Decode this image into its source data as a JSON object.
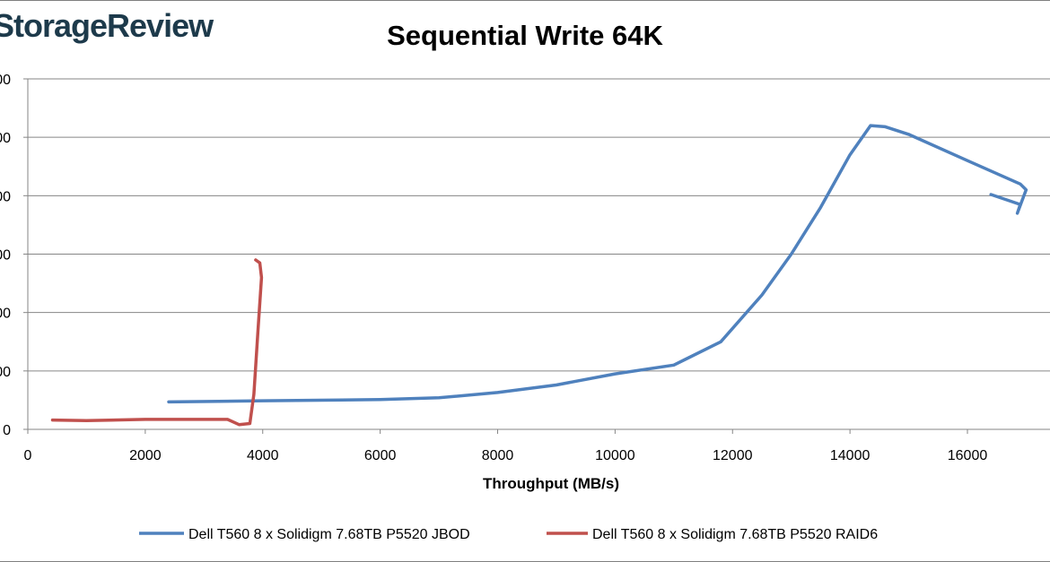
{
  "logo_text": "StorageReview",
  "chart_data": {
    "type": "line",
    "title": "Sequential Write 64K",
    "xlabel": "Throughput  (MB/s)",
    "ylabel": "",
    "xlim": [
      0,
      17500
    ],
    "ylim": [
      0,
      6
    ],
    "x_ticks": [
      0,
      2000,
      4000,
      6000,
      8000,
      10000,
      12000,
      14000,
      16000
    ],
    "y_tick_labels": [
      "0",
      "00",
      "00",
      "00",
      "00",
      "00",
      "00"
    ],
    "grid": "horizontal",
    "legend_position": "bottom",
    "series": [
      {
        "name": "Dell T560 8 x Solidigm 7.68TB P5520 JBOD",
        "color": "#4f81bd",
        "points": [
          [
            2400,
            0.47
          ],
          [
            4000,
            0.49
          ],
          [
            6000,
            0.51
          ],
          [
            7000,
            0.54
          ],
          [
            8000,
            0.63
          ],
          [
            9000,
            0.76
          ],
          [
            10000,
            0.95
          ],
          [
            11000,
            1.1
          ],
          [
            11800,
            1.5
          ],
          [
            12500,
            2.3
          ],
          [
            13000,
            3.0
          ],
          [
            13500,
            3.8
          ],
          [
            14000,
            4.7
          ],
          [
            14350,
            5.2
          ],
          [
            14600,
            5.18
          ],
          [
            15000,
            5.05
          ],
          [
            16000,
            4.6
          ],
          [
            16900,
            4.2
          ],
          [
            17000,
            4.1
          ],
          [
            16850,
            3.7
          ],
          [
            16900,
            3.85
          ],
          [
            16400,
            4.02
          ]
        ]
      },
      {
        "name": "Dell T560 8 x Solidigm 7.68TB P5520 RAID6",
        "color": "#c0504d",
        "points": [
          [
            420,
            0.16
          ],
          [
            1000,
            0.15
          ],
          [
            2000,
            0.17
          ],
          [
            3400,
            0.17
          ],
          [
            3600,
            0.08
          ],
          [
            3780,
            0.1
          ],
          [
            3850,
            0.6
          ],
          [
            3920,
            1.7
          ],
          [
            3980,
            2.6
          ],
          [
            3950,
            2.85
          ],
          [
            3880,
            2.9
          ]
        ]
      }
    ]
  }
}
